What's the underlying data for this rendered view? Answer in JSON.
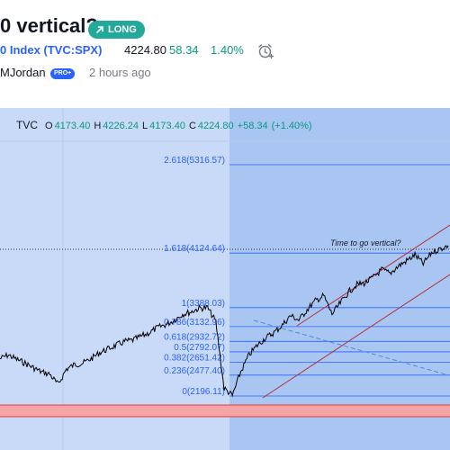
{
  "idea": {
    "title": "0 vertical?",
    "direction_badge": "LONG",
    "symbol_label": "0 Index (TVC:SPX)",
    "price": "4224.80",
    "change": "58.34",
    "change_pct": "1.40%",
    "author": "MJordan",
    "author_badge": "PRO+",
    "posted": "2 hours ago"
  },
  "legend": {
    "ticker": "TVC",
    "open_label": "O",
    "open": "4173.40",
    "high_label": "H",
    "high": "4226.24",
    "low_label": "L",
    "low": "4173.40",
    "close_label": "C",
    "close": "4224.80",
    "change": "+58.34",
    "change_pct": "(+1.40%)"
  },
  "chart_data": {
    "type": "line",
    "annotation": "Time to go vertical?",
    "fib_levels": [
      {
        "ratio": "2.618",
        "price": 5316.57,
        "label": "2.618(5316.57)"
      },
      {
        "ratio": "1.618",
        "price": 4124.64,
        "label": "1.618(4124.64)"
      },
      {
        "ratio": "1",
        "price": 3388.03,
        "label": "1(3388.03)"
      },
      {
        "ratio": "0.786",
        "price": 3132.96,
        "label": "0.786(3132.96)"
      },
      {
        "ratio": "0.618",
        "price": 2932.72,
        "label": "0.618(2932.72)"
      },
      {
        "ratio": "0.5",
        "price": 2792.07,
        "label": "0.5(2792.07)"
      },
      {
        "ratio": "0.382",
        "price": 2651.42,
        "label": "0.382(2651.42)"
      },
      {
        "ratio": "0.236",
        "price": 2477.4,
        "label": "0.236(2477.40)"
      },
      {
        "ratio": "0",
        "price": 2196.11,
        "label": "0(2196.11)"
      }
    ],
    "price_series": [
      2700,
      2750,
      2690,
      2640,
      2580,
      2520,
      2490,
      2350,
      2560,
      2620,
      2640,
      2700,
      2780,
      2830,
      2880,
      2930,
      2950,
      3000,
      3050,
      3120,
      3160,
      3220,
      3300,
      3330,
      3380,
      3388,
      3200,
      2300,
      2200,
      2520,
      2750,
      2880,
      2980,
      3050,
      3150,
      3280,
      3220,
      3360,
      3480,
      3550,
      3300,
      3450,
      3600,
      3700,
      3720,
      3800,
      3900,
      3850,
      3950,
      4020,
      4100,
      3980,
      4130,
      4180,
      4224.8
    ],
    "colors": {
      "fib_line": "#2962ff",
      "fib_text": "#2962ff",
      "channel": "#b2323c",
      "price": "#000000",
      "support_band": "#f4a6a6",
      "support_line": "#e53935",
      "highlight_zone": "#a9c6f2",
      "chart_background": "#c9daf8"
    }
  }
}
